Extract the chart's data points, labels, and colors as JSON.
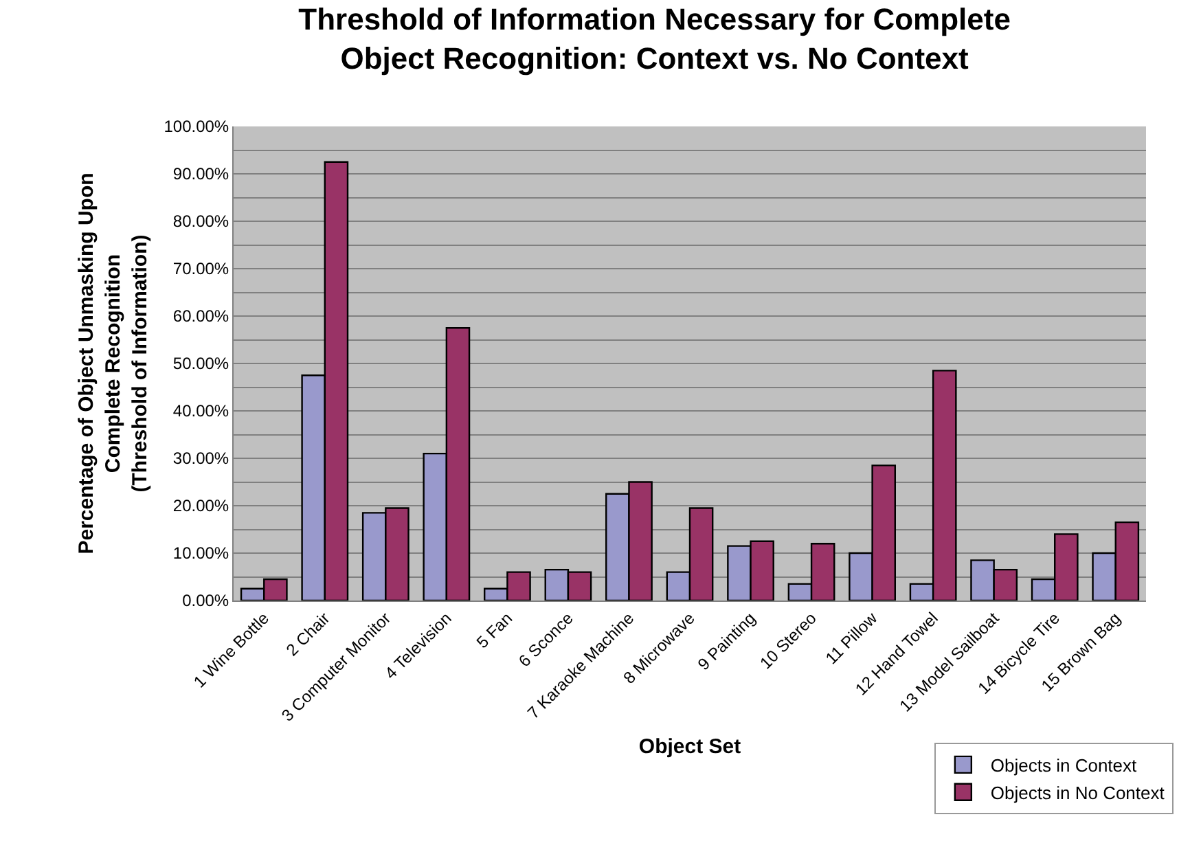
{
  "chart_data": {
    "type": "bar",
    "title": "Threshold of Information Necessary for Complete\nObject Recognition: Context vs. No Context",
    "xlabel": "Object Set",
    "ylabel": "Percentage of Object Unmasking Upon\nComplete Recognition\n(Threshold of Information)",
    "categories": [
      "1 Wine Bottle",
      "2 Chair",
      "3 Computer Monitor",
      "4 Television",
      "5 Fan",
      "6 Sconce",
      "7 Karaoke Machine",
      "8 Microwave",
      "9 Painting",
      "10 Stereo",
      "11 Pillow",
      "12 Hand Towel",
      "13 Model Sailboat",
      "14 Bicycle Tire",
      "15 Brown Bag"
    ],
    "series": [
      {
        "name": "Objects in Context",
        "color": "#9999cc",
        "values": [
          2.5,
          47.5,
          18.5,
          31,
          2.5,
          6.5,
          22.5,
          6,
          11.5,
          3.5,
          10,
          3.5,
          8.5,
          4.5,
          10
        ]
      },
      {
        "name": "Objects in No Context",
        "color": "#993366",
        "values": [
          4.5,
          92.5,
          19.5,
          57.5,
          6,
          6,
          25,
          19.5,
          12.5,
          12,
          28.5,
          48.5,
          6.5,
          14,
          16.5
        ]
      }
    ],
    "ylim": [
      0,
      100
    ],
    "yticks": [
      {
        "value": 0,
        "label": "0.00%"
      },
      {
        "value": 5,
        "label": null
      },
      {
        "value": 10,
        "label": "10.00%"
      },
      {
        "value": 15,
        "label": null
      },
      {
        "value": 20,
        "label": "20.00%"
      },
      {
        "value": 25,
        "label": null
      },
      {
        "value": 30,
        "label": "30.00%"
      },
      {
        "value": 35,
        "label": null
      },
      {
        "value": 40,
        "label": "40.00%"
      },
      {
        "value": 45,
        "label": null
      },
      {
        "value": 50,
        "label": "50.00%"
      },
      {
        "value": 55,
        "label": null
      },
      {
        "value": 60,
        "label": "60.00%"
      },
      {
        "value": 65,
        "label": null
      },
      {
        "value": 70,
        "label": "70.00%"
      },
      {
        "value": 75,
        "label": null
      },
      {
        "value": 80,
        "label": "80.00%"
      },
      {
        "value": 85,
        "label": null
      },
      {
        "value": 90,
        "label": "90.00%"
      },
      {
        "value": 95,
        "label": null
      },
      {
        "value": 100,
        "label": "100.00%"
      }
    ],
    "grid": "y",
    "legend": "bottom right"
  }
}
